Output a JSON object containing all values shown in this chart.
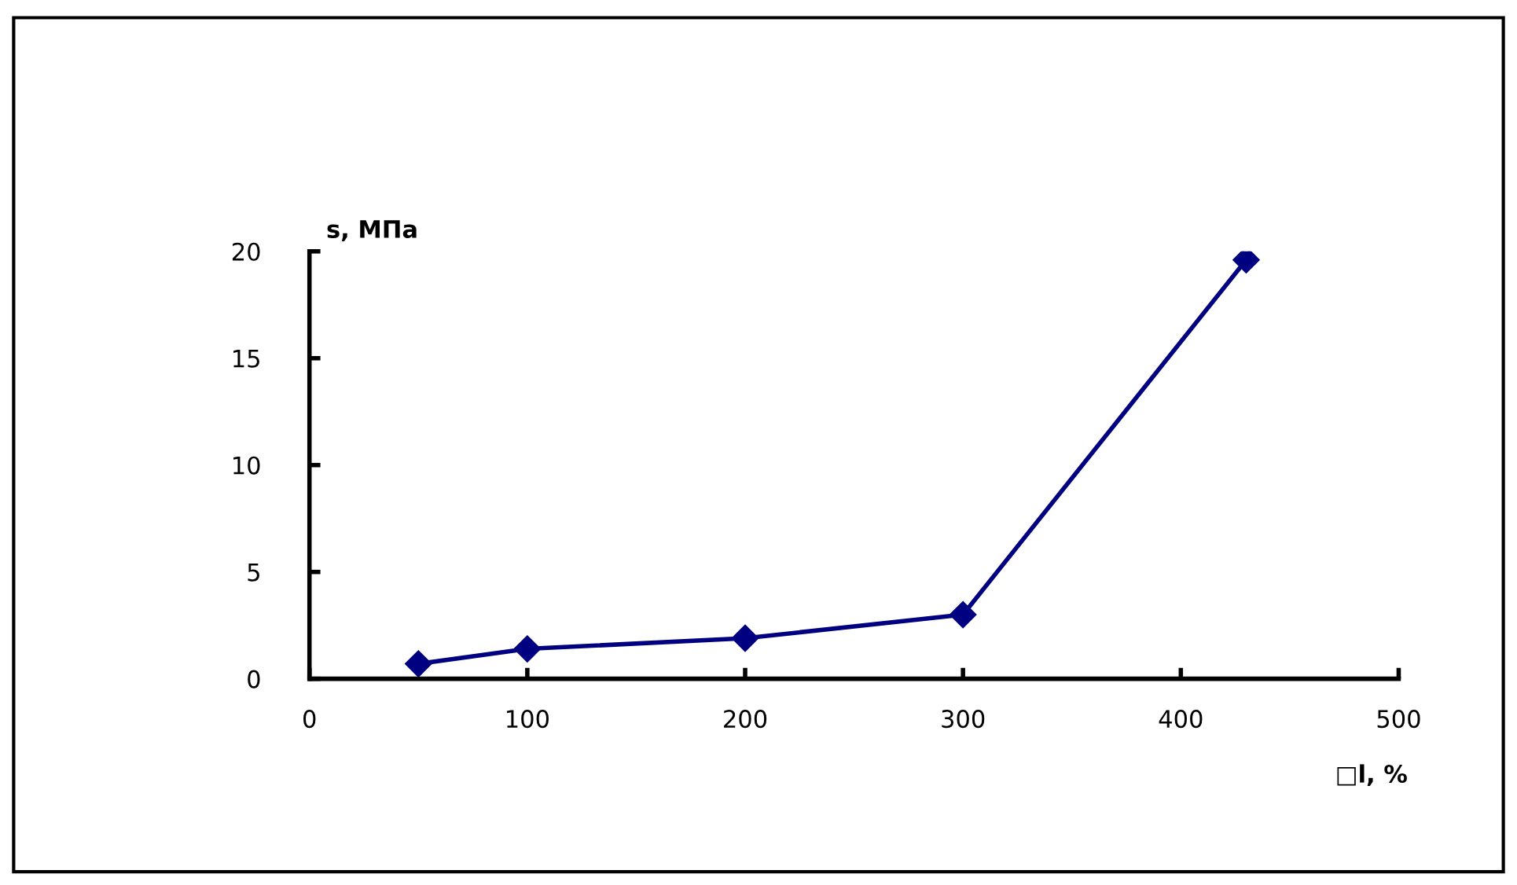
{
  "chart_data": {
    "type": "line",
    "xlabel": "□l, %",
    "ylabel": "s, МПа",
    "x": [
      50,
      100,
      200,
      300,
      430
    ],
    "series": [
      {
        "color": "#000080",
        "values": [
          0.7,
          1.4,
          1.9,
          3.0,
          19.6
        ]
      }
    ],
    "xlim": [
      0,
      500
    ],
    "xticks": [
      0,
      100,
      200,
      300,
      400,
      500
    ],
    "ylim": [
      0,
      20
    ],
    "yticks": [
      0,
      5,
      10,
      15,
      20
    ],
    "marker": "diamond",
    "line_style": "solid",
    "grid": false,
    "legend": false
  }
}
